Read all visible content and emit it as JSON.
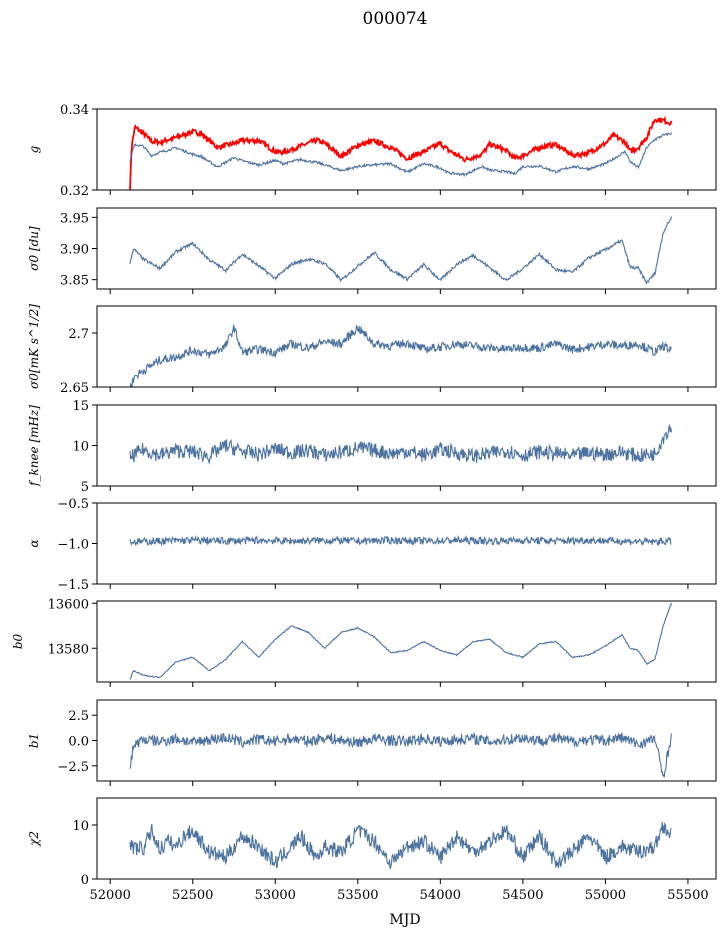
{
  "figure": {
    "title": "000074",
    "xlabel": "MJD"
  },
  "colors": {
    "series": "#4c72a0",
    "highlight": "#ff0000",
    "axis": "#000000"
  },
  "chart_data": [
    {
      "type": "line",
      "ylabel": "g",
      "ylim": [
        0.32,
        0.34
      ],
      "yticks": [
        0.32,
        0.34
      ],
      "series": [
        {
          "color": "#ff0000",
          "x": [
            52120,
            52130,
            52150,
            52200,
            52250,
            52300,
            52400,
            52500,
            52550,
            52650,
            52750,
            52800,
            52900,
            53000,
            53050,
            53150,
            53250,
            53300,
            53400,
            53500,
            53600,
            53700,
            53800,
            53900,
            54000,
            54050,
            54150,
            54250,
            54300,
            54400,
            54450,
            54500,
            54600,
            54700,
            54800,
            54900,
            55000,
            55050,
            55120,
            55150,
            55200,
            55250,
            55300,
            55350,
            55400
          ],
          "y": [
            0.3205,
            0.331,
            0.3355,
            0.334,
            0.332,
            0.3318,
            0.333,
            0.3344,
            0.334,
            0.3305,
            0.3315,
            0.3322,
            0.3322,
            0.3295,
            0.3293,
            0.3308,
            0.3323,
            0.3315,
            0.3283,
            0.331,
            0.3321,
            0.3305,
            0.3278,
            0.3295,
            0.3315,
            0.3298,
            0.3275,
            0.3288,
            0.3313,
            0.3297,
            0.3278,
            0.3285,
            0.3305,
            0.3313,
            0.3285,
            0.3292,
            0.3315,
            0.3335,
            0.3318,
            0.3295,
            0.3305,
            0.333,
            0.3375,
            0.3372,
            0.3365
          ]
        },
        {
          "color": "#4c72a0",
          "x": [
            52120,
            52130,
            52150,
            52200,
            52250,
            52300,
            52400,
            52500,
            52550,
            52650,
            52750,
            52800,
            52900,
            53000,
            53050,
            53150,
            53250,
            53300,
            53400,
            53500,
            53600,
            53700,
            53800,
            53900,
            54000,
            54050,
            54150,
            54250,
            54300,
            54400,
            54450,
            54500,
            54600,
            54700,
            54800,
            54900,
            55000,
            55050,
            55120,
            55150,
            55200,
            55250,
            55300,
            55350,
            55400
          ],
          "y": [
            0.327,
            0.329,
            0.3312,
            0.3308,
            0.3285,
            0.3293,
            0.3304,
            0.3288,
            0.3283,
            0.3257,
            0.328,
            0.3272,
            0.3262,
            0.3273,
            0.3265,
            0.3275,
            0.3268,
            0.3262,
            0.3248,
            0.3258,
            0.3262,
            0.3265,
            0.3244,
            0.3265,
            0.3255,
            0.3242,
            0.3238,
            0.3258,
            0.3249,
            0.3245,
            0.324,
            0.3258,
            0.3259,
            0.3245,
            0.3258,
            0.3252,
            0.3265,
            0.3277,
            0.3295,
            0.327,
            0.3255,
            0.3305,
            0.3325,
            0.3335,
            0.334
          ]
        }
      ]
    },
    {
      "type": "line",
      "ylabel": "σ0 [du]",
      "ylim": [
        3.835,
        3.965
      ],
      "yticks": [
        3.85,
        3.9,
        3.95
      ],
      "series": [
        {
          "color": "#4c72a0",
          "x": [
            52120,
            52140,
            52200,
            52300,
            52400,
            52500,
            52600,
            52700,
            52800,
            52900,
            53000,
            53100,
            53200,
            53300,
            53400,
            53500,
            53600,
            53700,
            53800,
            53900,
            54000,
            54100,
            54200,
            54300,
            54400,
            54500,
            54600,
            54700,
            54800,
            54900,
            55000,
            55100,
            55150,
            55200,
            55250,
            55300,
            55350,
            55400
          ],
          "y": [
            3.876,
            3.9,
            3.883,
            3.868,
            3.895,
            3.908,
            3.882,
            3.865,
            3.891,
            3.872,
            3.852,
            3.875,
            3.883,
            3.876,
            3.849,
            3.872,
            3.893,
            3.866,
            3.851,
            3.874,
            3.849,
            3.875,
            3.889,
            3.869,
            3.849,
            3.868,
            3.891,
            3.866,
            3.862,
            3.885,
            3.898,
            3.913,
            3.87,
            3.868,
            3.845,
            3.86,
            3.926,
            3.95
          ]
        }
      ]
    },
    {
      "type": "line",
      "ylabel": "σ0[mK s^1/2]",
      "ylim": [
        2.65,
        2.725
      ],
      "yticks": [
        2.65,
        2.7
      ],
      "series": [
        {
          "color": "#4c72a0",
          "x": [
            52120,
            52150,
            52200,
            52250,
            52300,
            52400,
            52500,
            52600,
            52700,
            52750,
            52800,
            52900,
            53000,
            53100,
            53200,
            53300,
            53400,
            53500,
            53600,
            53700,
            53800,
            53900,
            54000,
            54100,
            54200,
            54300,
            54400,
            54500,
            54600,
            54700,
            54800,
            54900,
            55000,
            55100,
            55200,
            55300,
            55350,
            55400
          ],
          "y": [
            2.65,
            2.66,
            2.665,
            2.67,
            2.675,
            2.678,
            2.684,
            2.68,
            2.688,
            2.705,
            2.682,
            2.685,
            2.682,
            2.69,
            2.686,
            2.692,
            2.69,
            2.705,
            2.69,
            2.688,
            2.691,
            2.685,
            2.687,
            2.69,
            2.688,
            2.686,
            2.685,
            2.687,
            2.686,
            2.69,
            2.685,
            2.687,
            2.69,
            2.688,
            2.69,
            2.682,
            2.688,
            2.684
          ]
        }
      ]
    },
    {
      "type": "line",
      "ylabel": "f_knee [mHz]",
      "ylim": [
        5,
        15
      ],
      "yticks": [
        5,
        10,
        15
      ],
      "series": [
        {
          "color": "#4c72a0",
          "x": [
            52120,
            52200,
            52300,
            52400,
            52500,
            52600,
            52700,
            52800,
            52900,
            53000,
            53100,
            53200,
            53300,
            53400,
            53500,
            53600,
            53700,
            53800,
            53900,
            54000,
            54100,
            54200,
            54300,
            54400,
            54500,
            54600,
            54700,
            54800,
            54900,
            55000,
            55100,
            55200,
            55300,
            55350,
            55400
          ],
          "y": [
            8.5,
            9.5,
            8.8,
            9.4,
            9.2,
            8.7,
            10,
            9.3,
            8.9,
            9.6,
            9.1,
            9.4,
            8.8,
            9.2,
            9.7,
            9.4,
            9,
            9.3,
            8.8,
            9.5,
            9.1,
            8.7,
            9,
            9.4,
            8.8,
            9.2,
            9,
            8.7,
            9.1,
            8.9,
            9.2,
            8.7,
            9,
            11,
            12.5
          ]
        }
      ]
    },
    {
      "type": "line",
      "ylabel": "α",
      "ylim": [
        -1.5,
        -0.5
      ],
      "yticks": [
        -1.5,
        -1.0,
        -0.5
      ],
      "series": [
        {
          "color": "#4c72a0",
          "x": [
            52120,
            52300,
            52500,
            52700,
            52900,
            53100,
            53300,
            53500,
            53700,
            53900,
            54100,
            54300,
            54500,
            54700,
            54900,
            55100,
            55300,
            55400
          ],
          "y": [
            -0.98,
            -0.97,
            -0.96,
            -0.97,
            -0.96,
            -0.97,
            -0.96,
            -0.97,
            -0.96,
            -0.97,
            -0.96,
            -0.97,
            -0.96,
            -0.97,
            -0.96,
            -0.97,
            -0.98,
            -0.97
          ]
        }
      ]
    },
    {
      "type": "line",
      "ylabel": "b0",
      "ylim": [
        13565,
        13601
      ],
      "yticks": [
        13580,
        13600
      ],
      "series": [
        {
          "color": "#4c72a0",
          "x": [
            52120,
            52140,
            52200,
            52300,
            52400,
            52500,
            52600,
            52700,
            52800,
            52900,
            53000,
            53100,
            53200,
            53300,
            53400,
            53500,
            53600,
            53700,
            53800,
            53900,
            54000,
            54100,
            54200,
            54300,
            54400,
            54500,
            54600,
            54700,
            54800,
            54900,
            55000,
            55100,
            55150,
            55200,
            55250,
            55300,
            55350,
            55400
          ],
          "y": [
            13566,
            13570,
            13568,
            13567,
            13574,
            13576,
            13570,
            13575,
            13583,
            13576,
            13584,
            13590,
            13587,
            13580,
            13587,
            13589,
            13585,
            13578,
            13579,
            13583,
            13579,
            13577,
            13583,
            13584,
            13578,
            13576,
            13582,
            13583,
            13576,
            13577,
            13581,
            13586,
            13580,
            13579,
            13573,
            13575,
            13590,
            13600
          ]
        }
      ]
    },
    {
      "type": "line",
      "ylabel": "b1",
      "ylim": [
        -4,
        4
      ],
      "yticks": [
        -2.5,
        0.0,
        2.5
      ],
      "series": [
        {
          "color": "#4c72a0",
          "x": [
            52120,
            52140,
            52200,
            52300,
            52400,
            52500,
            52600,
            52700,
            52800,
            52900,
            53000,
            53100,
            53200,
            53300,
            53400,
            53500,
            53600,
            53700,
            53800,
            53900,
            54000,
            54100,
            54200,
            54300,
            54400,
            54500,
            54600,
            54700,
            54800,
            54900,
            55000,
            55100,
            55200,
            55300,
            55350,
            55400
          ],
          "y": [
            -2.7,
            -0.5,
            0.1,
            -0.1,
            0.2,
            -0.2,
            0.1,
            0.3,
            -0.2,
            0.1,
            -0.1,
            0.2,
            -0.1,
            0.3,
            0.0,
            -0.2,
            0.2,
            0.0,
            -0.1,
            0.2,
            -0.1,
            0.1,
            0.2,
            -0.1,
            0.1,
            0.3,
            0.0,
            0.2,
            -0.1,
            0.1,
            0.0,
            0.3,
            -0.4,
            0.2,
            -3.6,
            0.5
          ]
        }
      ]
    },
    {
      "type": "line",
      "ylabel": "χ2",
      "ylim": [
        0,
        15
      ],
      "yticks": [
        0,
        10
      ],
      "series": [
        {
          "color": "#4c72a0",
          "x": [
            52120,
            52200,
            52250,
            52300,
            52350,
            52400,
            52450,
            52500,
            52600,
            52700,
            52800,
            52900,
            53000,
            53100,
            53150,
            53250,
            53300,
            53400,
            53500,
            53600,
            53700,
            53800,
            53900,
            54000,
            54100,
            54200,
            54300,
            54400,
            54500,
            54600,
            54700,
            54800,
            54900,
            55000,
            55100,
            55200,
            55300,
            55350,
            55400
          ],
          "y": [
            6,
            5.5,
            9,
            5.5,
            7,
            6,
            8,
            9,
            5,
            4,
            8,
            6,
            3,
            6,
            8,
            4,
            6,
            5,
            9,
            7,
            3,
            6,
            7,
            4,
            8,
            5,
            7,
            9,
            4,
            8,
            3,
            5,
            8,
            4,
            6,
            5,
            6,
            10,
            8
          ]
        }
      ]
    }
  ],
  "xaxis": {
    "xlim": [
      51920,
      55670
    ],
    "xticks": [
      52000,
      52500,
      53000,
      53500,
      54000,
      54500,
      55000,
      55500
    ]
  }
}
